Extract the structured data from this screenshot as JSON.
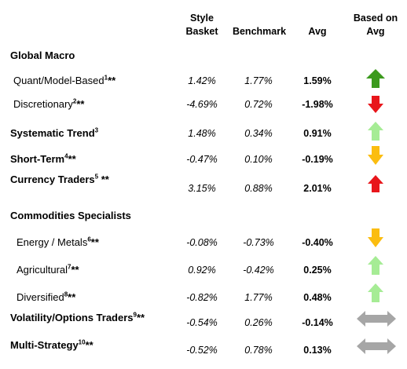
{
  "headers": {
    "style_basket": [
      "Style",
      "Basket"
    ],
    "benchmark": "Benchmark",
    "avg": "Avg",
    "based_on_avg": [
      "Based on",
      "Avg"
    ]
  },
  "sections": {
    "global_macro": "Global Macro",
    "commodities": "Commodities Specialists"
  },
  "rows": [
    {
      "label": "Quant/Model-Based",
      "sup": "1",
      "suffix": "**",
      "style": "1.42%",
      "bench": "1.77%",
      "avg": "1.59%",
      "arrow": "up",
      "color": "#3c9a1e"
    },
    {
      "label": "Discretionary",
      "sup": "2",
      "suffix": "**",
      "style": "-4.69%",
      "bench": "0.72%",
      "avg": "-1.98%",
      "arrow": "down",
      "color": "#e8161b"
    },
    {
      "label": "Systematic Trend",
      "sup": "3",
      "suffix": "",
      "style": "1.48%",
      "bench": "0.34%",
      "avg": "0.91%",
      "arrow": "up",
      "color": "#a6ec95"
    },
    {
      "label": "Short-Term",
      "sup": "4",
      "suffix": "**",
      "style": "-0.47%",
      "bench": "0.10%",
      "avg": "-0.19%",
      "arrow": "down",
      "color": "#fbbd10"
    },
    {
      "label": "Currency Traders",
      "sup": "5",
      "suffix": " **",
      "style": "3.15%",
      "bench": "0.88%",
      "avg": "2.01%",
      "arrow": "up",
      "color": "#e8161b"
    },
    {
      "label": "Energy / Metals",
      "sup": "6",
      "suffix": "**",
      "style": "-0.08%",
      "bench": "-0.73%",
      "avg": "-0.40%",
      "arrow": "down",
      "color": "#fbbd10"
    },
    {
      "label": "Agricultural",
      "sup": "7",
      "suffix": "**",
      "style": "0.92%",
      "bench": "-0.42%",
      "avg": "0.25%",
      "arrow": "up",
      "color": "#a6ec95"
    },
    {
      "label": "Diversified",
      "sup": "8",
      "suffix": "**",
      "style": "-0.82%",
      "bench": "1.77%",
      "avg": "0.48%",
      "arrow": "up",
      "color": "#a6ec95"
    },
    {
      "label": "Volatility/Options Traders",
      "sup": "9",
      "suffix": "**",
      "style": "-0.54%",
      "bench": "0.26%",
      "avg": "-0.14%",
      "arrow": "leftright",
      "color": "#a6a6a6"
    },
    {
      "label": "Multi-Strategy",
      "sup": "10",
      "suffix": "**",
      "style": "-0.52%",
      "bench": "0.78%",
      "avg": "0.13%",
      "arrow": "leftright",
      "color": "#a6a6a6"
    }
  ]
}
